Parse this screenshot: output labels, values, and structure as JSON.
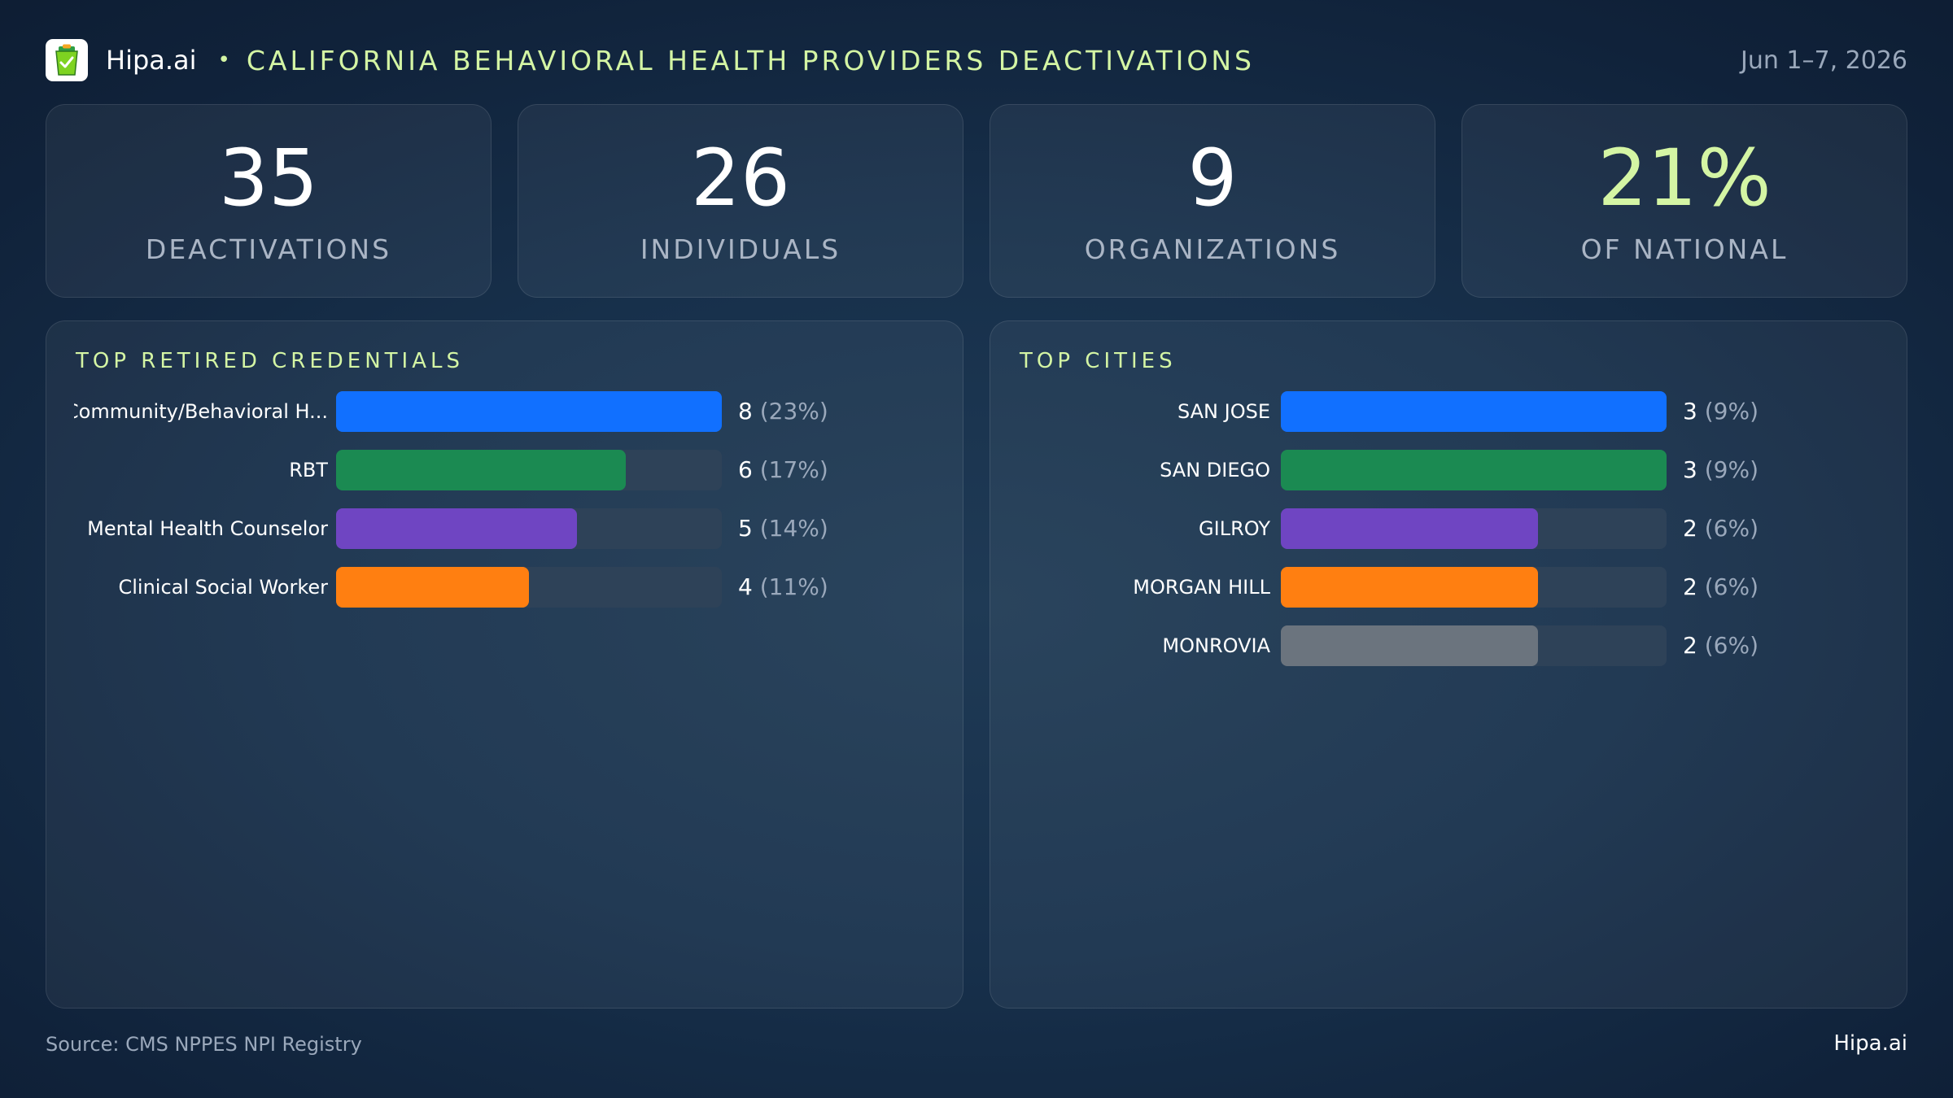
{
  "header": {
    "brand": "Hipa.ai",
    "separator": "•",
    "title": "CALIFORNIA BEHAVIORAL HEALTH PROVIDERS DEACTIVATIONS",
    "date_range": "Jun 1–7, 2026",
    "logo_icon": "clipboard-check-icon"
  },
  "kpis": [
    {
      "value": "35",
      "label": "DEACTIVATIONS"
    },
    {
      "value": "26",
      "label": "INDIVIDUALS"
    },
    {
      "value": "9",
      "label": "ORGANIZATIONS"
    },
    {
      "value": "21%",
      "label": "OF NATIONAL"
    }
  ],
  "colors": {
    "accent": "#d4f5a4",
    "blue": "#1170ff",
    "green": "#1b8a52",
    "purple": "#6f45c2",
    "orange": "#ff7f11",
    "gray": "#6b747e",
    "track": "#2e4258"
  },
  "chart_data": [
    {
      "type": "bar",
      "orientation": "horizontal",
      "title": "TOP RETIRED CREDENTIALS",
      "categories": [
        "Community/Behavioral H...",
        "RBT",
        "Mental Health Counselor",
        "Clinical Social Worker"
      ],
      "values": [
        8,
        6,
        5,
        4
      ],
      "value_labels": [
        "8",
        "6",
        "5",
        "4"
      ],
      "percent_labels": [
        "(23%)",
        "(17%)",
        "(14%)",
        "(11%)"
      ],
      "bar_colors": [
        "#1170ff",
        "#1b8a52",
        "#6f45c2",
        "#ff7f11"
      ],
      "xlim": [
        0,
        8
      ]
    },
    {
      "type": "bar",
      "orientation": "horizontal",
      "title": "TOP CITIES",
      "categories": [
        "SAN JOSE",
        "SAN DIEGO",
        "GILROY",
        "MORGAN HILL",
        "MONROVIA"
      ],
      "values": [
        3,
        3,
        2,
        2,
        2
      ],
      "value_labels": [
        "3",
        "3",
        "2",
        "2",
        "2"
      ],
      "percent_labels": [
        "(9%)",
        "(9%)",
        "(6%)",
        "(6%)",
        "(6%)"
      ],
      "bar_colors": [
        "#1170ff",
        "#1b8a52",
        "#6f45c2",
        "#ff7f11",
        "#6b747e"
      ],
      "xlim": [
        0,
        3
      ]
    }
  ],
  "footer": {
    "source": "Source: CMS NPPES NPI Registry",
    "brand": "Hipa.ai"
  }
}
